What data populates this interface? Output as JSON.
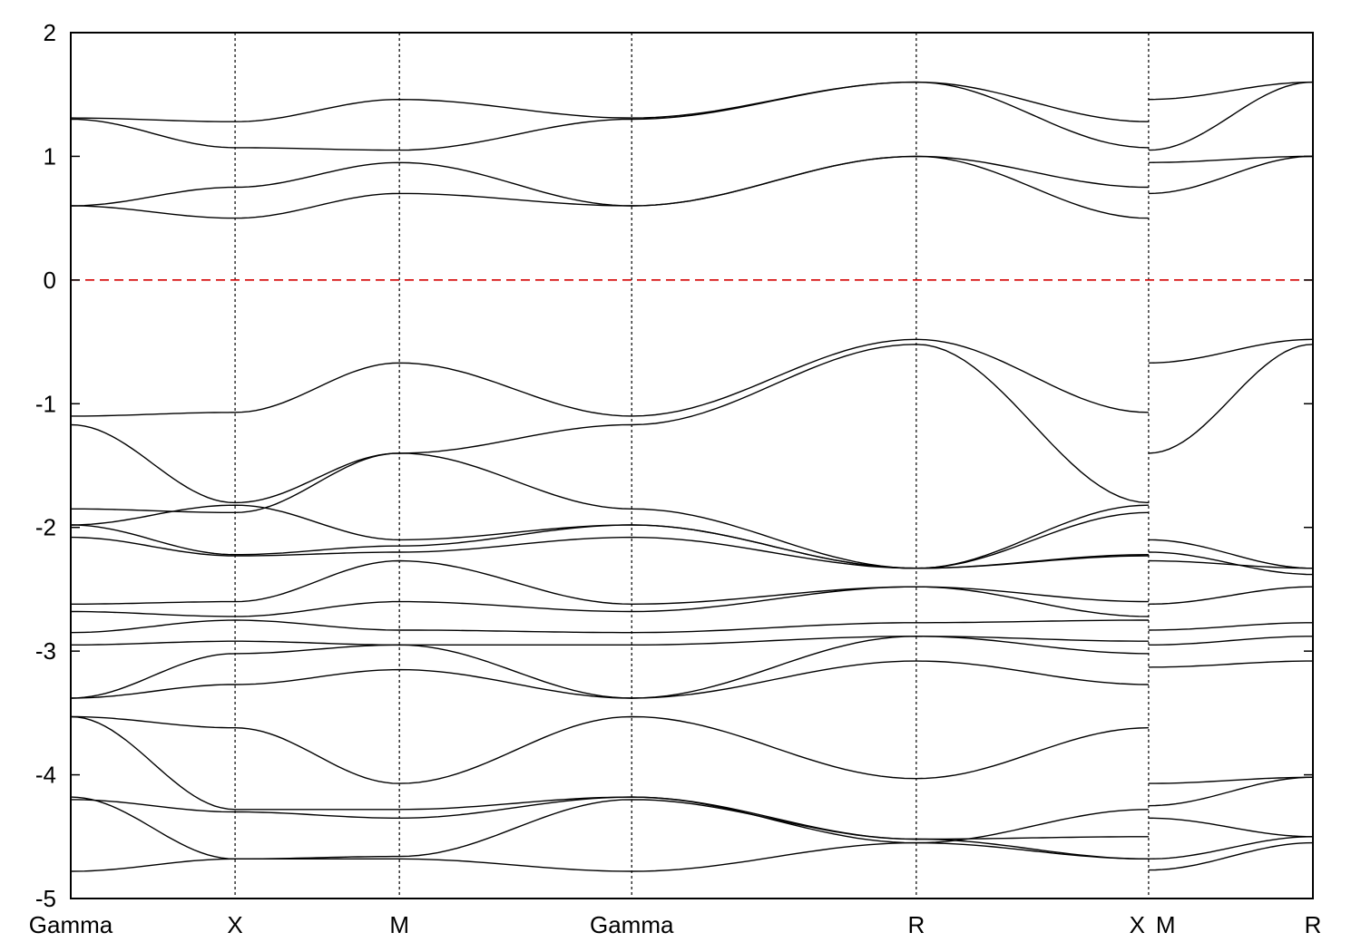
{
  "chart_data": {
    "type": "line",
    "title": "",
    "xlabel": "",
    "ylabel": "",
    "ylim": [
      -5,
      2
    ],
    "yticks": [
      "2",
      "1",
      "0",
      "-1",
      "-2",
      "-3",
      "-4",
      "-5"
    ],
    "ytick_values": [
      2,
      1,
      0,
      -1,
      -2,
      -3,
      -4,
      -5
    ],
    "kpath_labels": [
      "Gamma",
      "X",
      "M",
      "Gamma",
      "R",
      "X",
      "M",
      "R"
    ],
    "kpath_positions": [
      0,
      0.5,
      1.0,
      1.707,
      2.573,
      3.28,
      3.28,
      3.78
    ],
    "xlim": [
      0,
      3.78
    ],
    "path_break_after": "X",
    "fermi_level": 0,
    "fermi_color": "#d40000",
    "band_color": "#000000",
    "grid": false,
    "series": [
      {
        "values": [
          [
            0,
            -4.78
          ],
          [
            0.5,
            -4.68
          ],
          [
            1.0,
            -4.68
          ],
          [
            1.707,
            -4.78
          ],
          [
            2.573,
            -4.55
          ],
          [
            3.28,
            -4.68
          ]
        ]
      },
      {
        "values": [
          [
            0,
            -4.18
          ],
          [
            0.5,
            -4.68
          ],
          [
            1.0,
            -4.66
          ],
          [
            1.707,
            -4.2
          ],
          [
            2.573,
            -4.52
          ],
          [
            3.28,
            -4.5
          ]
        ]
      },
      {
        "values": [
          [
            0,
            -4.2
          ],
          [
            0.5,
            -4.3
          ],
          [
            1.0,
            -4.35
          ],
          [
            1.707,
            -4.18
          ],
          [
            2.573,
            -4.55
          ],
          [
            3.28,
            -4.28
          ]
        ]
      },
      {
        "values": [
          [
            0,
            -3.53
          ],
          [
            0.5,
            -4.28
          ],
          [
            1.0,
            -4.28
          ],
          [
            1.707,
            -4.18
          ],
          [
            2.573,
            -4.52
          ],
          [
            3.28,
            -4.68
          ]
        ]
      },
      {
        "values": [
          [
            0,
            -3.53
          ],
          [
            0.5,
            -3.62
          ],
          [
            1.0,
            -4.07
          ],
          [
            1.707,
            -3.53
          ],
          [
            2.573,
            -4.03
          ],
          [
            3.28,
            -3.62
          ]
        ]
      },
      {
        "values": [
          [
            0,
            -3.38
          ],
          [
            0.5,
            -3.27
          ],
          [
            1.0,
            -3.15
          ],
          [
            1.707,
            -3.38
          ],
          [
            2.573,
            -3.08
          ],
          [
            3.28,
            -3.27
          ]
        ]
      },
      {
        "values": [
          [
            0,
            -3.38
          ],
          [
            0.5,
            -3.02
          ],
          [
            1.0,
            -2.95
          ],
          [
            1.707,
            -3.38
          ],
          [
            2.573,
            -2.88
          ],
          [
            3.28,
            -3.02
          ]
        ]
      },
      {
        "values": [
          [
            0,
            -2.95
          ],
          [
            0.5,
            -2.92
          ],
          [
            1.0,
            -2.95
          ],
          [
            1.707,
            -2.95
          ],
          [
            2.573,
            -2.88
          ],
          [
            3.28,
            -2.92
          ]
        ]
      },
      {
        "values": [
          [
            0,
            -2.85
          ],
          [
            0.5,
            -2.75
          ],
          [
            1.0,
            -2.83
          ],
          [
            1.707,
            -2.85
          ],
          [
            2.573,
            -2.77
          ],
          [
            3.28,
            -2.75
          ]
        ]
      },
      {
        "values": [
          [
            0,
            -2.68
          ],
          [
            0.5,
            -2.72
          ],
          [
            1.0,
            -2.6
          ],
          [
            1.707,
            -2.68
          ],
          [
            2.573,
            -2.48
          ],
          [
            3.28,
            -2.72
          ]
        ]
      },
      {
        "values": [
          [
            0,
            -2.62
          ],
          [
            0.5,
            -2.6
          ],
          [
            1.0,
            -2.27
          ],
          [
            1.707,
            -2.62
          ],
          [
            2.573,
            -2.48
          ],
          [
            3.28,
            -2.6
          ]
        ]
      },
      {
        "values": [
          [
            0,
            -2.08
          ],
          [
            0.5,
            -2.23
          ],
          [
            1.0,
            -2.2
          ],
          [
            1.707,
            -2.08
          ],
          [
            2.573,
            -2.33
          ],
          [
            3.28,
            -2.23
          ]
        ]
      },
      {
        "values": [
          [
            0,
            -1.98
          ],
          [
            0.5,
            -2.22
          ],
          [
            1.0,
            -2.15
          ],
          [
            1.707,
            -1.98
          ],
          [
            2.573,
            -2.33
          ],
          [
            3.28,
            -2.22
          ]
        ]
      },
      {
        "values": [
          [
            0,
            -1.98
          ],
          [
            0.5,
            -1.82
          ],
          [
            1.0,
            -2.1
          ],
          [
            1.707,
            -1.98
          ],
          [
            2.573,
            -2.33
          ],
          [
            3.28,
            -1.82
          ]
        ]
      },
      {
        "values": [
          [
            0,
            -1.85
          ],
          [
            0.5,
            -1.88
          ],
          [
            1.0,
            -1.4
          ],
          [
            1.707,
            -1.85
          ],
          [
            2.573,
            -2.33
          ],
          [
            3.28,
            -1.88
          ]
        ]
      },
      {
        "values": [
          [
            0,
            -1.17
          ],
          [
            0.5,
            -1.8
          ],
          [
            1.0,
            -1.4
          ],
          [
            1.707,
            -1.17
          ],
          [
            2.573,
            -0.52
          ],
          [
            3.28,
            -1.8
          ]
        ]
      },
      {
        "values": [
          [
            0,
            -1.1
          ],
          [
            0.5,
            -1.07
          ],
          [
            1.0,
            -0.67
          ],
          [
            1.707,
            -1.1
          ],
          [
            2.573,
            -0.48
          ],
          [
            3.28,
            -1.07
          ]
        ]
      },
      {
        "values": [
          [
            0,
            0.6
          ],
          [
            0.5,
            0.5
          ],
          [
            1.0,
            0.7
          ],
          [
            1.707,
            0.6
          ],
          [
            2.573,
            1.0
          ],
          [
            3.28,
            0.5
          ]
        ]
      },
      {
        "values": [
          [
            0,
            0.6
          ],
          [
            0.5,
            0.75
          ],
          [
            1.0,
            0.95
          ],
          [
            1.707,
            0.6
          ],
          [
            2.573,
            1.0
          ],
          [
            3.28,
            0.75
          ]
        ]
      },
      {
        "values": [
          [
            0,
            1.3
          ],
          [
            0.5,
            1.07
          ],
          [
            1.0,
            1.05
          ],
          [
            1.707,
            1.3
          ],
          [
            2.573,
            1.6
          ],
          [
            3.28,
            1.07
          ]
        ]
      },
      {
        "values": [
          [
            0,
            1.31
          ],
          [
            0.5,
            1.28
          ],
          [
            1.0,
            1.46
          ],
          [
            1.707,
            1.31
          ],
          [
            2.573,
            1.6
          ],
          [
            3.28,
            1.28
          ]
        ]
      },
      {
        "values": [
          [
            3.28,
            -4.77
          ],
          [
            3.78,
            -4.55
          ]
        ]
      },
      {
        "values": [
          [
            3.28,
            -4.68
          ],
          [
            3.78,
            -4.5
          ]
        ]
      },
      {
        "values": [
          [
            3.28,
            -4.35
          ],
          [
            3.78,
            -4.5
          ]
        ]
      },
      {
        "values": [
          [
            3.28,
            -4.25
          ],
          [
            3.78,
            -4.02
          ]
        ]
      },
      {
        "values": [
          [
            3.28,
            -4.07
          ],
          [
            3.78,
            -4.02
          ]
        ]
      },
      {
        "values": [
          [
            3.28,
            -3.13
          ],
          [
            3.78,
            -3.08
          ]
        ]
      },
      {
        "values": [
          [
            3.28,
            -2.95
          ],
          [
            3.78,
            -2.88
          ]
        ]
      },
      {
        "values": [
          [
            3.28,
            -2.83
          ],
          [
            3.78,
            -2.77
          ]
        ]
      },
      {
        "values": [
          [
            3.28,
            -2.62
          ],
          [
            3.78,
            -2.48
          ]
        ]
      },
      {
        "values": [
          [
            3.28,
            -2.27
          ],
          [
            3.78,
            -2.33
          ]
        ]
      },
      {
        "values": [
          [
            3.28,
            -2.2
          ],
          [
            3.78,
            -2.38
          ]
        ]
      },
      {
        "values": [
          [
            3.28,
            -2.1
          ],
          [
            3.78,
            -2.33
          ]
        ]
      },
      {
        "values": [
          [
            3.28,
            -1.4
          ],
          [
            3.78,
            -0.52
          ]
        ]
      },
      {
        "values": [
          [
            3.28,
            -0.67
          ],
          [
            3.78,
            -0.48
          ]
        ]
      },
      {
        "values": [
          [
            3.28,
            0.7
          ],
          [
            3.78,
            1.0
          ]
        ]
      },
      {
        "values": [
          [
            3.28,
            0.95
          ],
          [
            3.78,
            1.0
          ]
        ]
      },
      {
        "values": [
          [
            3.28,
            1.05
          ],
          [
            3.78,
            1.6
          ]
        ]
      },
      {
        "values": [
          [
            3.28,
            1.46
          ],
          [
            3.78,
            1.6
          ]
        ]
      }
    ]
  }
}
